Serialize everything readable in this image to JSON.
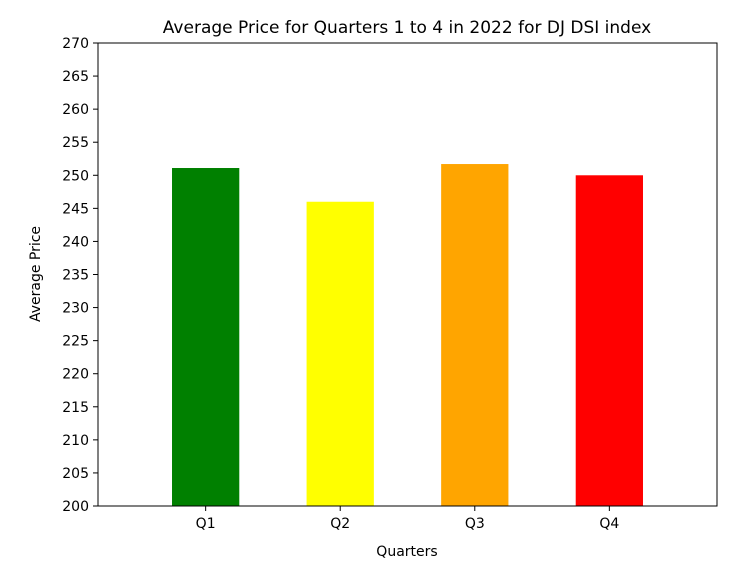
{
  "chart_data": {
    "type": "bar",
    "title": "Average Price for Quarters 1 to 4 in 2022 for DJ DSI index",
    "xlabel": "Quarters",
    "ylabel": "Average Price",
    "categories": [
      "Q1",
      "Q2",
      "Q3",
      "Q4"
    ],
    "values": [
      251.1,
      246.0,
      251.7,
      250.0
    ],
    "colors": [
      "#008000",
      "#ffff00",
      "#ffa500",
      "#ff0000"
    ],
    "ylim": [
      200,
      270
    ],
    "yticks": [
      200,
      205,
      210,
      215,
      220,
      225,
      230,
      235,
      240,
      245,
      250,
      255,
      260,
      265,
      270
    ],
    "grid": false,
    "legend": null
  }
}
